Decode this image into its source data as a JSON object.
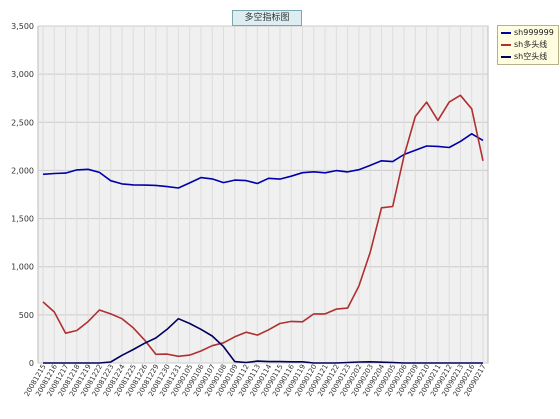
{
  "chart_title": "多空指标图",
  "chart_data": {
    "type": "line",
    "title": "多空指标图",
    "ylim": [
      0,
      3500
    ],
    "yticks": [
      0,
      500,
      1000,
      1500,
      2000,
      2500,
      3000,
      3500
    ],
    "ytick_labels": [
      "0",
      "500",
      "1,000",
      "1,500",
      "2,000",
      "2,500",
      "3,000",
      "3,500"
    ],
    "grid": true,
    "legend_position": "top-right outside",
    "categories": [
      "20081215",
      "20081216",
      "20081217",
      "20081218",
      "20081219",
      "20081222",
      "20081223",
      "20081224",
      "20081225",
      "20081226",
      "20081229",
      "20081230",
      "20081231",
      "20090105",
      "20090106",
      "20090107",
      "20090108",
      "20090109",
      "20090112",
      "20090113",
      "20090114",
      "20090115",
      "20090116",
      "20090119",
      "20090120",
      "20090121",
      "20090122",
      "20090123",
      "20090202",
      "20090203",
      "20090204",
      "20090205",
      "20090206",
      "20090209",
      "20090210",
      "20090211",
      "20090212",
      "20090213",
      "20090216",
      "20090217"
    ],
    "series": [
      {
        "name": "sh999999",
        "color": "#0000aa",
        "values": [
          1960,
          1968,
          1972,
          2006,
          2012,
          1980,
          1893,
          1860,
          1850,
          1848,
          1845,
          1832,
          1818,
          1870,
          1925,
          1912,
          1874,
          1900,
          1894,
          1864,
          1918,
          1910,
          1940,
          1976,
          1986,
          1975,
          1998,
          1985,
          2008,
          2052,
          2100,
          2092,
          2165,
          2210,
          2254,
          2250,
          2238,
          2302,
          2380,
          2312
        ]
      },
      {
        "name": "sh多头线",
        "color": "#b03030",
        "values": [
          635,
          530,
          310,
          338,
          430,
          550,
          510,
          460,
          365,
          240,
          90,
          92,
          70,
          82,
          125,
          180,
          210,
          272,
          320,
          290,
          345,
          410,
          432,
          428,
          510,
          510,
          560,
          570,
          800,
          1150,
          1612,
          1625,
          2150,
          2560,
          2710,
          2520,
          2710,
          2780,
          2640,
          2100
        ]
      },
      {
        "name": "sh空头线",
        "color": "#00005a",
        "values": [
          0,
          0,
          0,
          0,
          0,
          0,
          10,
          80,
          140,
          205,
          260,
          350,
          460,
          410,
          350,
          280,
          170,
          15,
          5,
          20,
          15,
          15,
          12,
          12,
          0,
          0,
          0,
          5,
          10,
          12,
          8,
          5,
          0,
          0,
          0,
          0,
          0,
          0,
          0,
          0
        ]
      }
    ]
  }
}
